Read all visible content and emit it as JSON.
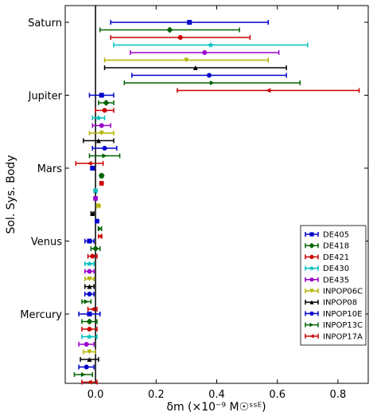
{
  "chart_data": {
    "type": "scatter",
    "title": "",
    "xlabel": "δm (×10⁻⁹ M☉ˢˢᴱ)",
    "ylabel": "Sol. Sys. Body",
    "xlim": [
      -0.1,
      0.9
    ],
    "xticks": [
      "0.0",
      "0.2",
      "0.4",
      "0.6",
      "0.8"
    ],
    "x_tick_values": [
      0.0,
      0.2,
      0.4,
      0.6,
      0.8
    ],
    "categories": [
      "Saturn",
      "Jupiter",
      "Mars",
      "Venus",
      "Mercury"
    ],
    "zero_line": 0.0,
    "legend_position": "lower-right",
    "series": [
      {
        "name": "DE405",
        "color": "#0000cc",
        "marker": "square",
        "points": [
          [
            0.31,
            0.26
          ],
          [
            0.02,
            0.04
          ],
          [
            -0.01,
            0.005
          ],
          [
            -0.02,
            0.015
          ],
          [
            -0.02,
            0.035
          ]
        ]
      },
      {
        "name": "DE418",
        "color": "#006400",
        "marker": "diamond",
        "points": [
          [
            0.245,
            0.23
          ],
          [
            0.035,
            0.025
          ],
          [
            0.02,
            0.005
          ],
          [
            0.0,
            0.015
          ],
          [
            -0.02,
            0.025
          ]
        ]
      },
      {
        "name": "DE421",
        "color": "#cc0000",
        "marker": "circle",
        "points": [
          [
            0.28,
            0.23
          ],
          [
            0.03,
            0.03
          ],
          [
            0.02,
            0.005
          ],
          [
            -0.01,
            0.015
          ],
          [
            -0.02,
            0.025
          ]
        ]
      },
      {
        "name": "DE430",
        "color": "#00bfbf",
        "marker": "star",
        "points": [
          [
            0.38,
            0.32
          ],
          [
            0.01,
            0.02
          ],
          [
            0.0,
            0.005
          ],
          [
            -0.02,
            0.015
          ],
          [
            -0.02,
            0.025
          ]
        ]
      },
      {
        "name": "DE435",
        "color": "#9900cc",
        "marker": "circle",
        "points": [
          [
            0.36,
            0.245
          ],
          [
            0.02,
            0.03
          ],
          [
            0.0,
            0.005
          ],
          [
            -0.02,
            0.015
          ],
          [
            -0.03,
            0.025
          ]
        ]
      },
      {
        "name": "INPOP06C",
        "color": "#b3b300",
        "marker": "triangle-down",
        "points": [
          [
            0.3,
            0.27
          ],
          [
            0.02,
            0.04
          ],
          [
            0.01,
            0.005
          ],
          [
            -0.02,
            0.015
          ],
          [
            -0.02,
            0.02
          ]
        ]
      },
      {
        "name": "INPOP08",
        "color": "#000000",
        "marker": "triangle-up",
        "points": [
          [
            0.33,
            0.3
          ],
          [
            0.01,
            0.05
          ],
          [
            -0.01,
            0.005
          ],
          [
            -0.02,
            0.015
          ],
          [
            -0.02,
            0.03
          ]
        ]
      },
      {
        "name": "INPOP10E",
        "color": "#0000cc",
        "marker": "circle",
        "points": [
          [
            0.375,
            0.255
          ],
          [
            0.03,
            0.04
          ],
          [
            0.005,
            0.005
          ],
          [
            -0.02,
            0.015
          ],
          [
            -0.03,
            0.025
          ]
        ]
      },
      {
        "name": "INPOP13C",
        "color": "#006400",
        "marker": "triangle-right",
        "points": [
          [
            0.385,
            0.29
          ],
          [
            0.03,
            0.05
          ],
          [
            0.015,
            0.005
          ],
          [
            -0.03,
            0.015
          ],
          [
            -0.04,
            0.03
          ]
        ]
      },
      {
        "name": "INPOP17A",
        "color": "#cc0000",
        "marker": "triangle-left",
        "points": [
          [
            0.57,
            0.3
          ],
          [
            -0.02,
            0.045
          ],
          [
            0.015,
            0.005
          ],
          [
            -0.01,
            0.015
          ],
          [
            -0.02,
            0.025
          ]
        ]
      }
    ]
  }
}
